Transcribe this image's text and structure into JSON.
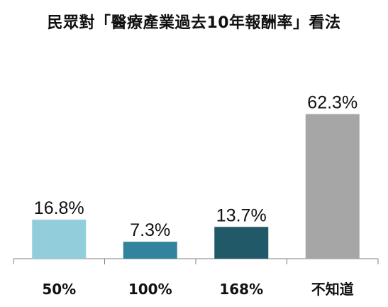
{
  "chart_data": {
    "type": "bar",
    "title": "民眾對「醫療產業過去10年報酬率」看法",
    "xlabel": "",
    "ylabel": "",
    "categories": [
      "50%",
      "100%",
      "168%",
      "不知道"
    ],
    "values": [
      16.8,
      7.3,
      13.7,
      62.3
    ],
    "value_labels": [
      "16.8%",
      "7.3%",
      "13.7%",
      "62.3%"
    ],
    "colors": [
      "#92cddc",
      "#31849b",
      "#215968",
      "#a6a6a6"
    ],
    "ylim": [
      0,
      70
    ],
    "grid": false,
    "legend": "none"
  }
}
